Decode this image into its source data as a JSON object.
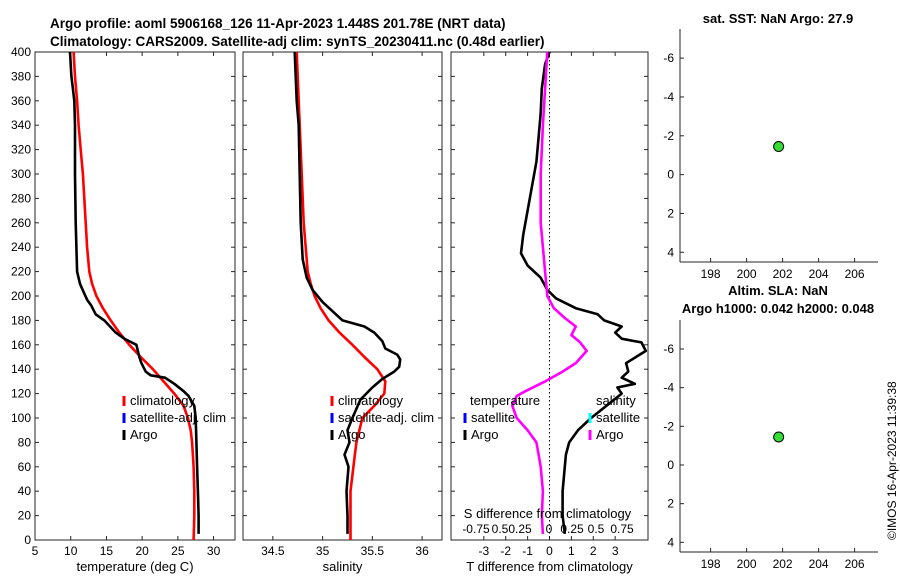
{
  "header": {
    "line1": "Argo profile: aoml 5906168_126 11-Apr-2023 1.448S 201.78E (NRT data)",
    "line2": "Climatology: CARS2009. Satellite-adj clim: synTS_20230411.nc (0.48d earlier)"
  },
  "colors": {
    "climatology": "#ff0000",
    "satellite_adj": "#0000ff",
    "argo": "#000000",
    "sal_satellite": "#00ffff",
    "sal_argo": "#ff00ff",
    "marker_fill": "#33dd33"
  },
  "chart_data": [
    {
      "name": "temperature",
      "type": "line",
      "xlabel": "temperature (deg C)",
      "ylabel": "",
      "xlim": [
        5,
        33
      ],
      "ylim": [
        400,
        0
      ],
      "xticks": [
        5,
        10,
        15,
        20,
        25,
        30
      ],
      "yticks": [
        0,
        20,
        40,
        60,
        80,
        100,
        120,
        140,
        160,
        180,
        200,
        220,
        240,
        260,
        280,
        300,
        320,
        340,
        360,
        380,
        400
      ],
      "legend": [
        "climatology",
        "satellite-adj. clim",
        "Argo"
      ],
      "series": [
        {
          "name": "climatology",
          "color": "#ff0000",
          "points": [
            [
              27.2,
              0
            ],
            [
              27.3,
              20
            ],
            [
              27.3,
              40
            ],
            [
              27.2,
              60
            ],
            [
              27.0,
              80
            ],
            [
              26.8,
              90
            ],
            [
              26.4,
              100
            ],
            [
              25.8,
              110
            ],
            [
              24.5,
              120
            ],
            [
              23.0,
              130
            ],
            [
              21.5,
              140
            ],
            [
              19.8,
              150
            ],
            [
              18.2,
              160
            ],
            [
              16.8,
              170
            ],
            [
              15.6,
              180
            ],
            [
              14.5,
              190
            ],
            [
              13.6,
              200
            ],
            [
              13.0,
              210
            ],
            [
              12.6,
              220
            ],
            [
              12.3,
              240
            ],
            [
              12.1,
              260
            ],
            [
              11.9,
              280
            ],
            [
              11.7,
              300
            ],
            [
              11.4,
              320
            ],
            [
              11.1,
              340
            ],
            [
              10.9,
              360
            ],
            [
              10.6,
              380
            ],
            [
              10.4,
              400
            ]
          ]
        },
        {
          "name": "Argo",
          "color": "#000000",
          "points": [
            [
              27.9,
              5
            ],
            [
              27.9,
              20
            ],
            [
              27.8,
              40
            ],
            [
              27.7,
              60
            ],
            [
              27.6,
              80
            ],
            [
              27.5,
              100
            ],
            [
              27.3,
              110
            ],
            [
              26.8,
              115
            ],
            [
              26.5,
              118
            ],
            [
              25.8,
              122
            ],
            [
              24.5,
              128
            ],
            [
              23.2,
              133
            ],
            [
              21.2,
              135
            ],
            [
              20.5,
              138
            ],
            [
              19.9,
              145
            ],
            [
              19.6,
              150
            ],
            [
              19.2,
              160
            ],
            [
              17.5,
              165
            ],
            [
              16.3,
              170
            ],
            [
              15.5,
              175
            ],
            [
              14.7,
              180
            ],
            [
              13.5,
              185
            ],
            [
              12.9,
              192
            ],
            [
              12.3,
              197
            ],
            [
              11.9,
              202
            ],
            [
              11.3,
              210
            ],
            [
              10.9,
              220
            ],
            [
              10.8,
              240
            ],
            [
              10.7,
              260
            ],
            [
              10.6,
              300
            ],
            [
              10.6,
              340
            ],
            [
              10.5,
              360
            ],
            [
              10.3,
              370
            ],
            [
              10.1,
              380
            ],
            [
              9.9,
              400
            ]
          ]
        }
      ]
    },
    {
      "name": "salinity",
      "type": "line",
      "xlabel": "salinity",
      "ylabel": "",
      "xlim": [
        34.2,
        36.2
      ],
      "ylim": [
        400,
        0
      ],
      "xticks": [
        34.5,
        35,
        35.5,
        36
      ],
      "xtick_labels": [
        "34.5",
        "35",
        "35.5",
        "36"
      ],
      "legend": [
        "climatology",
        "satellite-adj. clim",
        "Argo"
      ],
      "series": [
        {
          "name": "climatology",
          "color": "#ff0000",
          "points": [
            [
              35.28,
              0
            ],
            [
              35.28,
              40
            ],
            [
              35.31,
              60
            ],
            [
              35.34,
              80
            ],
            [
              35.4,
              100
            ],
            [
              35.52,
              110
            ],
            [
              35.62,
              120
            ],
            [
              35.63,
              130
            ],
            [
              35.55,
              140
            ],
            [
              35.42,
              150
            ],
            [
              35.3,
              160
            ],
            [
              35.17,
              170
            ],
            [
              35.06,
              180
            ],
            [
              34.98,
              190
            ],
            [
              34.92,
              200
            ],
            [
              34.88,
              210
            ],
            [
              34.85,
              220
            ],
            [
              34.83,
              240
            ],
            [
              34.81,
              260
            ],
            [
              34.8,
              280
            ],
            [
              34.79,
              300
            ],
            [
              34.78,
              320
            ],
            [
              34.77,
              340
            ],
            [
              34.76,
              360
            ],
            [
              34.75,
              380
            ],
            [
              34.74,
              400
            ]
          ]
        },
        {
          "name": "Argo",
          "color": "#000000",
          "points": [
            [
              35.25,
              5
            ],
            [
              35.25,
              20
            ],
            [
              35.24,
              40
            ],
            [
              35.26,
              60
            ],
            [
              35.22,
              70
            ],
            [
              35.27,
              80
            ],
            [
              35.25,
              90
            ],
            [
              35.3,
              100
            ],
            [
              35.38,
              115
            ],
            [
              35.5,
              125
            ],
            [
              35.6,
              132
            ],
            [
              35.72,
              138
            ],
            [
              35.77,
              142
            ],
            [
              35.78,
              148
            ],
            [
              35.75,
              152
            ],
            [
              35.63,
              157
            ],
            [
              35.6,
              163
            ],
            [
              35.52,
              170
            ],
            [
              35.42,
              175
            ],
            [
              35.2,
              180
            ],
            [
              35.0,
              195
            ],
            [
              34.9,
              205
            ],
            [
              34.84,
              215
            ],
            [
              34.8,
              230
            ],
            [
              34.78,
              260
            ],
            [
              34.77,
              300
            ],
            [
              34.76,
              340
            ],
            [
              34.74,
              360
            ],
            [
              34.73,
              380
            ],
            [
              34.72,
              400
            ]
          ]
        }
      ]
    },
    {
      "name": "difference",
      "type": "line",
      "xlabel": "T difference from climatology",
      "xlabel_top": "S difference from climatology",
      "top_tick_labels": [
        "-0.75",
        "0.5",
        "0.25",
        "0",
        "0.25",
        "0.5",
        "0.75"
      ],
      "ylabel": "",
      "xlim": [
        -4.5,
        4.5
      ],
      "ylim": [
        400,
        0
      ],
      "xticks": [
        -3,
        -2,
        -1,
        0,
        1,
        2,
        3
      ],
      "legend_left_title": "temperature",
      "legend_right_title": "salinity",
      "legend_left": [
        "satellite",
        "Argo"
      ],
      "legend_right": [
        "satellite",
        "Argo"
      ],
      "series": [
        {
          "name": "T Argo",
          "color": "#000000",
          "points": [
            [
              0.7,
              5
            ],
            [
              0.6,
              20
            ],
            [
              0.6,
              40
            ],
            [
              0.7,
              60
            ],
            [
              0.75,
              70
            ],
            [
              0.9,
              80
            ],
            [
              1.3,
              90
            ],
            [
              1.9,
              100
            ],
            [
              2.6,
              110
            ],
            [
              3.3,
              120
            ],
            [
              3.1,
              125
            ],
            [
              3.9,
              128
            ],
            [
              3.3,
              133
            ],
            [
              3.6,
              138
            ],
            [
              3.5,
              145
            ],
            [
              4.4,
              155
            ],
            [
              4.2,
              162
            ],
            [
              3.3,
              165
            ],
            [
              3.0,
              170
            ],
            [
              3.3,
              175
            ],
            [
              2.5,
              180
            ],
            [
              2.2,
              185
            ],
            [
              1.2,
              190
            ],
            [
              0.3,
              198
            ],
            [
              -0.1,
              205
            ],
            [
              -0.4,
              215
            ],
            [
              -1.0,
              225
            ],
            [
              -1.3,
              235
            ],
            [
              -1.2,
              250
            ],
            [
              -1.0,
              270
            ],
            [
              -0.8,
              290
            ],
            [
              -0.6,
              310
            ],
            [
              -0.5,
              330
            ],
            [
              -0.4,
              350
            ],
            [
              -0.35,
              370
            ],
            [
              -0.2,
              390
            ],
            [
              0.0,
              400
            ]
          ]
        },
        {
          "name": "S Argo",
          "color": "#ff00ff",
          "points": [
            [
              -0.3,
              5
            ],
            [
              -0.35,
              20
            ],
            [
              -0.3,
              40
            ],
            [
              -0.4,
              60
            ],
            [
              -0.5,
              70
            ],
            [
              -0.6,
              80
            ],
            [
              -1.0,
              90
            ],
            [
              -1.5,
              100
            ],
            [
              -1.7,
              110
            ],
            [
              -1.5,
              118
            ],
            [
              -1.1,
              122
            ],
            [
              -0.2,
              130
            ],
            [
              0.6,
              138
            ],
            [
              1.2,
              145
            ],
            [
              1.7,
              155
            ],
            [
              1.4,
              162
            ],
            [
              1.0,
              168
            ],
            [
              1.2,
              175
            ],
            [
              0.7,
              182
            ],
            [
              0.2,
              190
            ],
            [
              -0.1,
              200
            ],
            [
              -0.2,
              220
            ],
            [
              -0.3,
              240
            ],
            [
              -0.4,
              260
            ],
            [
              -0.4,
              300
            ],
            [
              -0.3,
              340
            ],
            [
              -0.2,
              370
            ],
            [
              -0.1,
              400
            ]
          ]
        }
      ]
    },
    {
      "name": "sst",
      "type": "scatter",
      "title": "sat. SST: NaN Argo: 27.9",
      "xlim": [
        196.3,
        207.3
      ],
      "ylim": [
        -7.5,
        4.5
      ],
      "xticks": [
        198,
        200,
        202,
        204,
        206
      ],
      "yticks": [
        -6,
        -4,
        -2,
        0,
        2,
        4
      ],
      "points": [
        [
          201.78,
          -1.448
        ]
      ]
    },
    {
      "name": "sla",
      "type": "scatter",
      "title": "Altim. SLA: NaN",
      "subtitle": "Argo h1000: 0.042 h2000: 0.048",
      "xlim": [
        196.3,
        207.3
      ],
      "ylim": [
        -7.5,
        4.5
      ],
      "xticks": [
        198,
        200,
        202,
        204,
        206
      ],
      "yticks": [
        -6,
        -4,
        -2,
        0,
        2,
        4
      ],
      "points": [
        [
          201.78,
          -1.448
        ]
      ]
    }
  ],
  "footer": {
    "stamp": "©IMOS 16-Apr-2023 11:39:38"
  }
}
